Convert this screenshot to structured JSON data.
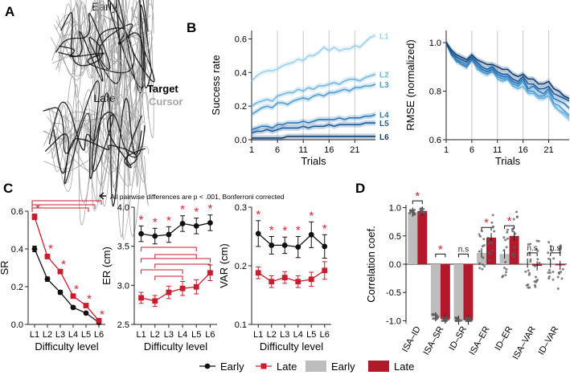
{
  "panel_labels": {
    "a": "A",
    "b": "B",
    "c": "C",
    "d": "D"
  },
  "panel_a": {
    "early_title": "Early",
    "late_title": "Late",
    "legend_target": "Target",
    "legend_cursor": "Cursor",
    "target_color": "#111111",
    "cursor_color": "#9a9a9a"
  },
  "colors": {
    "early_black": "#111111",
    "late_red": "#c41e2f",
    "bar_grey": "#bdbdbd",
    "bar_red": "#b3192b",
    "star_red": "#e0212f",
    "level_colors": [
      "#9fd0ec",
      "#72b6e0",
      "#4f9dd1",
      "#2d79b9",
      "#1c5c9c",
      "#143f73"
    ]
  },
  "chart_data": [
    {
      "id": "B-success",
      "type": "line",
      "xlabel": "Trials",
      "ylabel": "Success rate",
      "xticks": [
        1,
        6,
        11,
        16,
        21
      ],
      "yticks": [
        "0.0",
        "0.2",
        "0.4",
        "0.6"
      ],
      "xlim": [
        1,
        25
      ],
      "ylim": [
        0,
        0.65
      ],
      "series": [
        {
          "name": "L1",
          "values": [
            0.35,
            0.38,
            0.4,
            0.41,
            0.41,
            0.42,
            0.44,
            0.45,
            0.46,
            0.48,
            0.47,
            0.5,
            0.5,
            0.52,
            0.55,
            0.53,
            0.55,
            0.53,
            0.54,
            0.54,
            0.56,
            0.55,
            0.58,
            0.61,
            0.62
          ]
        },
        {
          "name": "L2",
          "values": [
            0.2,
            0.22,
            0.23,
            0.24,
            0.23,
            0.26,
            0.27,
            0.28,
            0.28,
            0.3,
            0.29,
            0.31,
            0.3,
            0.32,
            0.32,
            0.33,
            0.34,
            0.33,
            0.35,
            0.36,
            0.36,
            0.35,
            0.37,
            0.38,
            0.39
          ]
        },
        {
          "name": "L3",
          "values": [
            0.15,
            0.17,
            0.19,
            0.2,
            0.19,
            0.22,
            0.22,
            0.21,
            0.23,
            0.24,
            0.25,
            0.24,
            0.26,
            0.27,
            0.26,
            0.28,
            0.28,
            0.29,
            0.3,
            0.29,
            0.31,
            0.31,
            0.32,
            0.32,
            0.33
          ]
        },
        {
          "name": "L4",
          "values": [
            0.06,
            0.07,
            0.08,
            0.08,
            0.07,
            0.09,
            0.09,
            0.1,
            0.1,
            0.1,
            0.11,
            0.1,
            0.11,
            0.12,
            0.12,
            0.12,
            0.12,
            0.13,
            0.12,
            0.13,
            0.13,
            0.13,
            0.14,
            0.14,
            0.15
          ]
        },
        {
          "name": "L5",
          "values": [
            0.04,
            0.05,
            0.05,
            0.06,
            0.05,
            0.06,
            0.07,
            0.07,
            0.07,
            0.07,
            0.08,
            0.07,
            0.08,
            0.08,
            0.08,
            0.09,
            0.08,
            0.09,
            0.09,
            0.09,
            0.09,
            0.09,
            0.1,
            0.1,
            0.1
          ]
        },
        {
          "name": "L6",
          "values": [
            0.01,
            0.01,
            0.01,
            0.01,
            0.01,
            0.01,
            0.01,
            0.02,
            0.02,
            0.02,
            0.02,
            0.02,
            0.02,
            0.02,
            0.02,
            0.02,
            0.02,
            0.02,
            0.02,
            0.02,
            0.02,
            0.02,
            0.02,
            0.02,
            0.02
          ]
        }
      ]
    },
    {
      "id": "B-rmse",
      "type": "line",
      "xlabel": "Trials",
      "ylabel": "RMSE (normalized)",
      "xticks": [
        1,
        6,
        11,
        16,
        21
      ],
      "yticks": [
        "0.6",
        "0.8",
        "1.0"
      ],
      "xlim": [
        1,
        25
      ],
      "ylim": [
        0.6,
        1.05
      ],
      "series": [
        {
          "name": "L1",
          "values": [
            1.0,
            0.96,
            0.94,
            0.93,
            0.92,
            0.95,
            0.9,
            0.89,
            0.88,
            0.9,
            0.86,
            0.85,
            0.86,
            0.83,
            0.82,
            0.84,
            0.8,
            0.8,
            0.78,
            0.77,
            0.79,
            0.74,
            0.72,
            0.7,
            0.68
          ]
        },
        {
          "name": "L2",
          "values": [
            1.0,
            0.95,
            0.93,
            0.92,
            0.9,
            0.94,
            0.89,
            0.88,
            0.87,
            0.89,
            0.85,
            0.84,
            0.85,
            0.82,
            0.81,
            0.82,
            0.79,
            0.79,
            0.77,
            0.77,
            0.78,
            0.74,
            0.72,
            0.71,
            0.69
          ]
        },
        {
          "name": "L3",
          "values": [
            1.0,
            0.96,
            0.92,
            0.92,
            0.91,
            0.93,
            0.9,
            0.88,
            0.87,
            0.88,
            0.86,
            0.85,
            0.85,
            0.83,
            0.82,
            0.84,
            0.8,
            0.8,
            0.78,
            0.78,
            0.8,
            0.75,
            0.74,
            0.72,
            0.7
          ]
        },
        {
          "name": "L4",
          "values": [
            1.0,
            0.95,
            0.93,
            0.91,
            0.9,
            0.93,
            0.91,
            0.89,
            0.88,
            0.89,
            0.87,
            0.86,
            0.86,
            0.84,
            0.83,
            0.85,
            0.81,
            0.82,
            0.8,
            0.79,
            0.81,
            0.77,
            0.76,
            0.75,
            0.73
          ]
        },
        {
          "name": "L5",
          "values": [
            1.0,
            0.96,
            0.94,
            0.93,
            0.92,
            0.94,
            0.92,
            0.9,
            0.89,
            0.9,
            0.88,
            0.87,
            0.87,
            0.85,
            0.84,
            0.86,
            0.83,
            0.83,
            0.81,
            0.81,
            0.82,
            0.79,
            0.78,
            0.77,
            0.76
          ]
        },
        {
          "name": "L6",
          "values": [
            1.0,
            0.97,
            0.95,
            0.94,
            0.93,
            0.95,
            0.93,
            0.92,
            0.91,
            0.91,
            0.9,
            0.89,
            0.89,
            0.87,
            0.86,
            0.87,
            0.85,
            0.85,
            0.83,
            0.83,
            0.84,
            0.81,
            0.8,
            0.78,
            0.77
          ]
        }
      ]
    },
    {
      "id": "C-SR",
      "type": "line",
      "xlabel": "Difficulty level",
      "ylabel": "SR",
      "categories": [
        "L1",
        "L2",
        "L3",
        "L4",
        "L5",
        "L6"
      ],
      "yticks": [
        "0.0",
        "0.2",
        "0.4",
        "0.6"
      ],
      "ylim": [
        0,
        0.6
      ],
      "series": [
        {
          "name": "Early",
          "values": [
            0.4,
            0.24,
            0.17,
            0.09,
            0.06,
            0.01
          ],
          "errors": [
            0.015,
            0.012,
            0.01,
            0.008,
            0.006,
            0.003
          ]
        },
        {
          "name": "Late",
          "values": [
            0.57,
            0.36,
            0.28,
            0.15,
            0.1,
            0.02
          ],
          "errors": [
            0.015,
            0.012,
            0.01,
            0.008,
            0.006,
            0.003
          ]
        }
      ],
      "significance": [
        "*",
        "*",
        "*",
        "*",
        "*",
        "*"
      ],
      "bracket_note": "All pairwise differences are p < .001, Bonferroni corrected"
    },
    {
      "id": "C-ER",
      "type": "line",
      "xlabel": "Difficulty level",
      "ylabel": "ER (cm)",
      "categories": [
        "L1",
        "L2",
        "L3",
        "L4",
        "L5",
        "L6"
      ],
      "yticks": [
        "2.5",
        "3.0",
        "3.5",
        "4.0"
      ],
      "ylim": [
        2.5,
        4.0
      ],
      "series": [
        {
          "name": "Early",
          "values": [
            3.66,
            3.63,
            3.65,
            3.79,
            3.76,
            3.8
          ],
          "errors": [
            0.1,
            0.1,
            0.1,
            0.1,
            0.1,
            0.1
          ]
        },
        {
          "name": "Late",
          "values": [
            2.84,
            2.8,
            2.91,
            2.96,
            2.98,
            3.16
          ],
          "errors": [
            0.07,
            0.07,
            0.08,
            0.09,
            0.09,
            0.1
          ]
        }
      ],
      "significance": [
        "*",
        "*",
        "*",
        "*",
        "*",
        "*"
      ]
    },
    {
      "id": "C-VAR",
      "type": "line",
      "xlabel": "Difficulty level",
      "ylabel": "VAR (cm)",
      "categories": [
        "L1",
        "L2",
        "L3",
        "L4",
        "L5",
        "L6"
      ],
      "yticks": [
        "0.1",
        "0.2",
        "0.3"
      ],
      "ylim": [
        0.1,
        0.3
      ],
      "series": [
        {
          "name": "Early",
          "values": [
            0.255,
            0.235,
            0.235,
            0.232,
            0.253,
            0.233
          ],
          "errors": [
            0.022,
            0.015,
            0.014,
            0.018,
            0.022,
            0.02
          ]
        },
        {
          "name": "Late",
          "values": [
            0.188,
            0.173,
            0.18,
            0.173,
            0.177,
            0.192
          ],
          "errors": [
            0.01,
            0.01,
            0.01,
            0.01,
            0.012,
            0.015
          ]
        }
      ],
      "significance": [
        "*",
        "*",
        "*",
        "*",
        "*",
        "*"
      ]
    },
    {
      "id": "D-corr",
      "type": "bar",
      "ylabel": "Correlation coef.",
      "categories": [
        "ISA–ID",
        "ISA–SR",
        "ID–SR",
        "ISA–ER",
        "ID–ER",
        "ISA–VAR",
        "ID–VAR"
      ],
      "yticks": [
        "-1.0",
        "-0.5",
        "0.0",
        "0.5",
        "1.0"
      ],
      "ylim": [
        -1.05,
        1.05
      ],
      "series": [
        {
          "name": "Early",
          "values": [
            0.92,
            -0.93,
            -0.99,
            0.2,
            0.18,
            0.02,
            0.02
          ]
        },
        {
          "name": "Late",
          "values": [
            0.94,
            -0.97,
            -0.99,
            0.47,
            0.5,
            -0.03,
            -0.02
          ]
        }
      ],
      "significance": [
        "*",
        "*",
        "n.s",
        "*",
        "*",
        "n.s",
        "n.s"
      ]
    }
  ],
  "legend": {
    "line_early": "Early",
    "line_late": "Late",
    "bar_early": "Early",
    "bar_late": "Late"
  }
}
